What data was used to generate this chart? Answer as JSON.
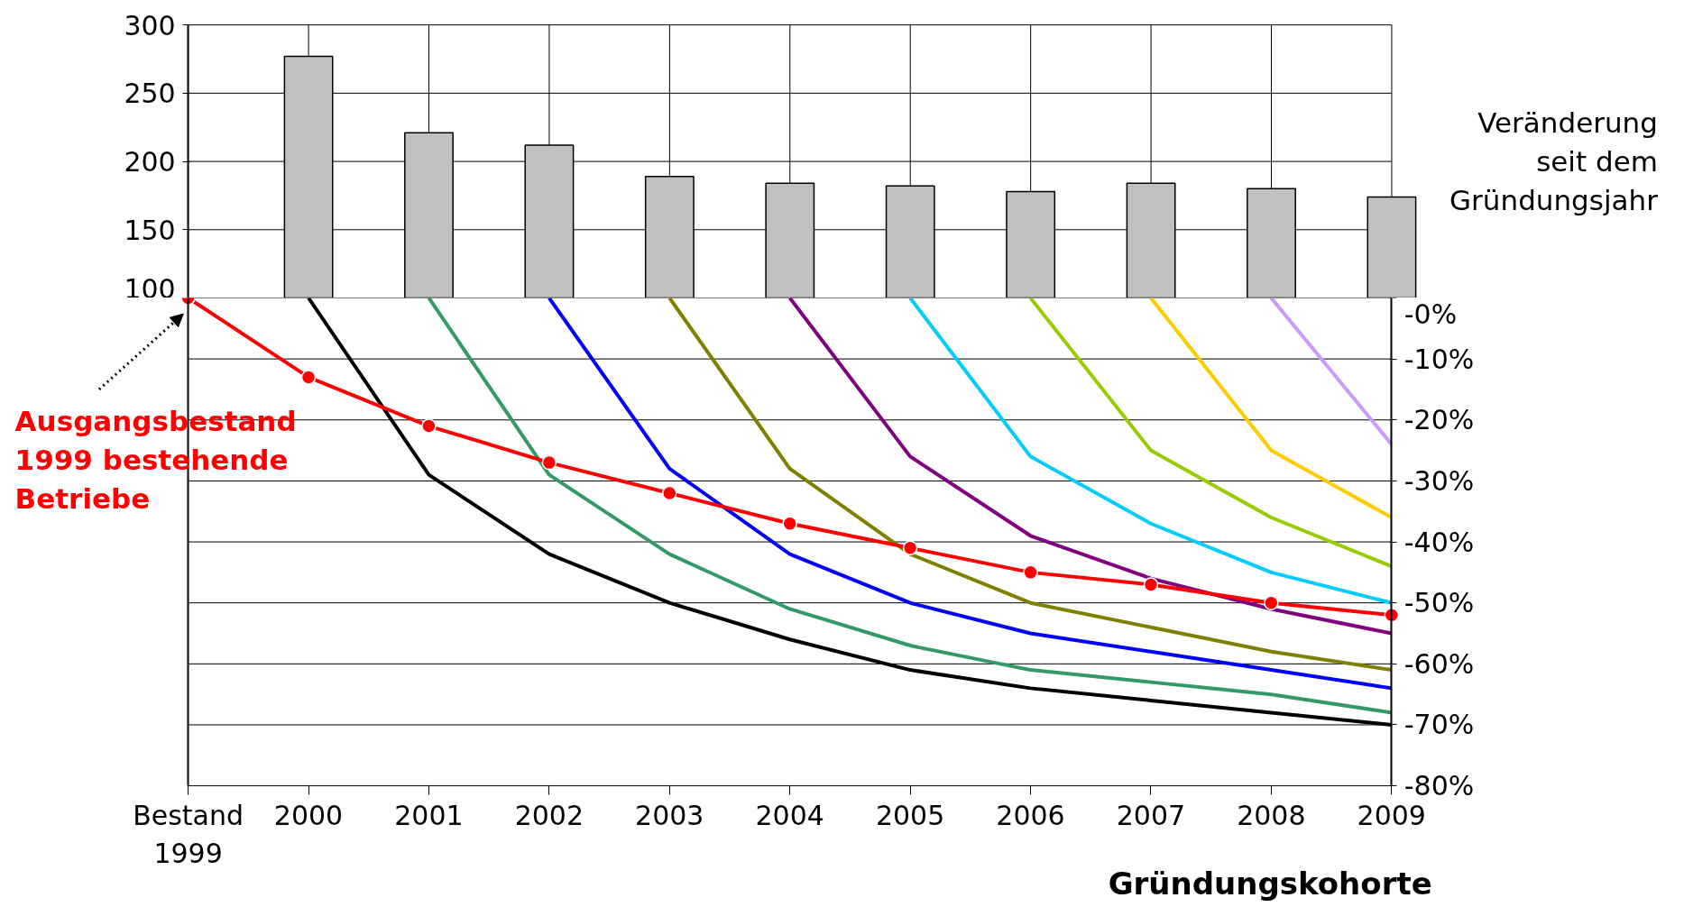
{
  "chart_data": [
    {
      "type": "bar",
      "categories": [
        "Bestand 1999",
        "2000",
        "2001",
        "2002",
        "2003",
        "2004",
        "2005",
        "2006",
        "2007",
        "2008",
        "2009"
      ],
      "values": [
        null,
        277,
        221,
        212,
        189,
        184,
        182,
        178,
        184,
        180,
        174
      ],
      "color": "#c0c0c0",
      "ylim": [
        100,
        300
      ],
      "yticks": [
        100,
        150,
        200,
        250,
        300
      ],
      "grid": true,
      "tick_labels": "y"
    },
    {
      "type": "line",
      "categories": [
        "Bestand 1999",
        "2000",
        "2001",
        "2002",
        "2003",
        "2004",
        "2005",
        "2006",
        "2007",
        "2008",
        "2009"
      ],
      "xlabel": "Gründungskohorte",
      "ylabel": "Veränderung seit dem Gründungsjahr",
      "ylim": [
        -80,
        0
      ],
      "yticks": [
        {
          "value": 0,
          "label": "-0%"
        },
        {
          "value": -10,
          "label": "-10%"
        },
        {
          "value": -20,
          "label": "-20%"
        },
        {
          "value": -30,
          "label": "-30%"
        },
        {
          "value": -40,
          "label": "-40%"
        },
        {
          "value": -50,
          "label": "-50%"
        },
        {
          "value": -60,
          "label": "-60%"
        },
        {
          "value": -70,
          "label": "-70%"
        },
        {
          "value": -80,
          "label": "-80%"
        }
      ],
      "grid": "y",
      "series": [
        {
          "color": "#000000",
          "values": [
            null,
            0,
            -29,
            -42,
            -50,
            -56,
            -61,
            -64,
            -66,
            -68,
            -70
          ]
        },
        {
          "color": "#339966",
          "values": [
            null,
            null,
            0,
            -29,
            -42,
            -51,
            -57,
            -61,
            -63,
            -65,
            -68
          ]
        },
        {
          "color": "#0000ff",
          "values": [
            null,
            null,
            null,
            0,
            -28,
            -42,
            -50,
            -55,
            -58,
            -61,
            -64
          ]
        },
        {
          "color": "#808000",
          "values": [
            null,
            null,
            null,
            null,
            0,
            -28,
            -42,
            -50,
            -54,
            -58,
            -61
          ]
        },
        {
          "color": "#800080",
          "values": [
            null,
            null,
            null,
            null,
            null,
            0,
            -26,
            -39,
            -46,
            -51,
            -55
          ]
        },
        {
          "color": "#00ccff",
          "values": [
            null,
            null,
            null,
            null,
            null,
            null,
            0,
            -26,
            -37,
            -45,
            -50
          ]
        },
        {
          "color": "#99cc00",
          "values": [
            null,
            null,
            null,
            null,
            null,
            null,
            null,
            0,
            -25,
            -36,
            -44
          ]
        },
        {
          "color": "#ffcc00",
          "values": [
            null,
            null,
            null,
            null,
            null,
            null,
            null,
            null,
            0,
            -25,
            -36
          ]
        },
        {
          "color": "#cc99ff",
          "values": [
            null,
            null,
            null,
            null,
            null,
            null,
            null,
            null,
            null,
            0,
            -24
          ]
        },
        {
          "name": "Ausgangsbestand 1999 bestehende Betriebe",
          "color": "#ff0000",
          "marker": "circle",
          "values": [
            0,
            -13,
            -21,
            -27,
            -32,
            -37,
            -41,
            -45,
            -47,
            -50,
            -52
          ]
        }
      ]
    }
  ]
}
